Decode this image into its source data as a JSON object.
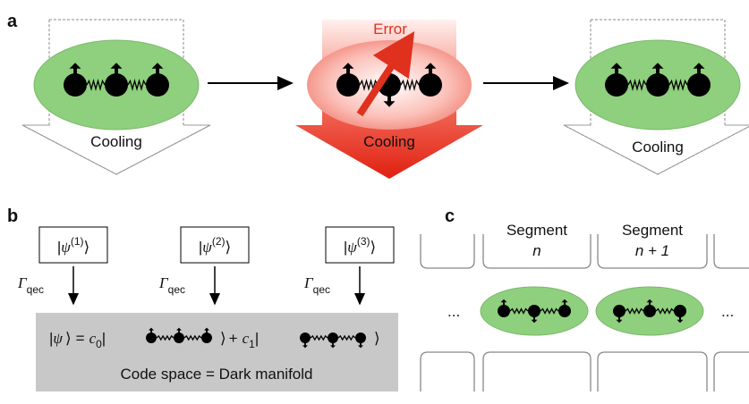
{
  "panel_a": {
    "label": "a",
    "stages": [
      "Cooling",
      "Cooling",
      "Cooling"
    ],
    "error": "Error"
  },
  "panel_b": {
    "label": "b",
    "states": [
      {
        "symbol": "ψ",
        "superscript": "(1)"
      },
      {
        "symbol": "ψ",
        "superscript": "(2)"
      },
      {
        "symbol": "ψ",
        "superscript": "(3)"
      }
    ],
    "bra": "|",
    "ket": "⟩",
    "rate": {
      "symbol": "Γ",
      "subscript": "qec"
    },
    "equation": {
      "lhs": "ψ",
      "equals": "=",
      "c0": "c",
      "c0_sub": "0",
      "plus": "+",
      "c1": "c",
      "c1_sub": "1"
    },
    "caption": "Code space = Dark manifold"
  },
  "panel_c": {
    "label": "c",
    "segments": [
      {
        "title": "Segment",
        "index": "n"
      },
      {
        "title": "Segment",
        "index": "n + 1"
      }
    ],
    "ellipsis": "..."
  }
}
